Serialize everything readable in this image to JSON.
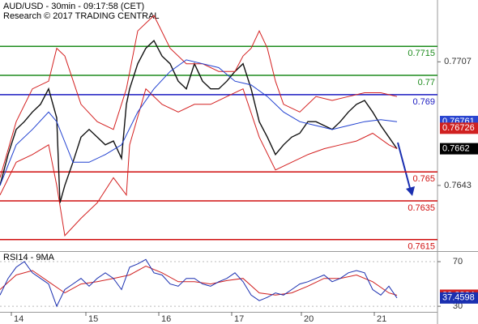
{
  "chart_data": [
    {
      "type": "line",
      "title": "AUD/USD - 30min - 09:17:58 (CET)",
      "subtitle": "Research © 2017 TRADING CENTRAL",
      "xlim": [
        0,
        270
      ],
      "ylim": [
        0.7609,
        0.7739
      ],
      "yticks": [
        0.7707,
        0.7643
      ],
      "levels": {
        "values": [
          0.7715,
          0.77,
          0.769,
          0.765,
          0.7635,
          0.7615
        ],
        "colors": [
          "#1e8c1e",
          "#1e8c1e",
          "#1a1ac0",
          "#d01010",
          "#d01010",
          "#d01010"
        ]
      },
      "markers": [
        {
          "value": 0.76761,
          "color": "#2a45d0"
        },
        {
          "value": 0.76726,
          "color": "#d02020"
        }
      ],
      "series": [
        {
          "color": "#111111",
          "x": [
            0,
            5,
            10,
            15,
            20,
            25,
            30,
            35,
            37,
            40,
            45,
            50,
            55,
            60,
            65,
            70,
            75,
            78,
            80,
            85,
            90,
            95,
            100,
            105,
            110,
            115,
            120,
            125,
            130,
            135,
            140,
            145,
            150,
            155,
            160,
            165,
            170,
            175,
            180,
            185,
            190,
            195,
            200,
            205,
            210,
            215,
            220,
            225,
            230,
            235,
            240,
            245
          ],
          "values": [
            0.7643,
            0.7659,
            0.7672,
            0.7676,
            0.7681,
            0.7685,
            0.7693,
            0.7678,
            0.7634,
            0.7643,
            0.7655,
            0.7668,
            0.7672,
            0.7668,
            0.7664,
            0.7666,
            0.7657,
            0.7685,
            0.7693,
            0.7706,
            0.7714,
            0.7718,
            0.771,
            0.7706,
            0.7697,
            0.7693,
            0.7706,
            0.7697,
            0.7693,
            0.7693,
            0.7697,
            0.7702,
            0.7706,
            0.7693,
            0.7676,
            0.7668,
            0.7659,
            0.7664,
            0.7668,
            0.767,
            0.7676,
            0.7676,
            0.7674,
            0.7672,
            0.7676,
            0.7681,
            0.7685,
            0.7687,
            0.7681,
            0.7674,
            0.7668,
            0.7662
          ]
        },
        {
          "color": "#d42020",
          "x": [
            0,
            10,
            20,
            30,
            35,
            40,
            50,
            60,
            70,
            78,
            85,
            95,
            105,
            115,
            125,
            135,
            145,
            150,
            155,
            160,
            165,
            170,
            175,
            185,
            195,
            205,
            215,
            225,
            235,
            245
          ],
          "values": [
            0.7647,
            0.7676,
            0.7693,
            0.7697,
            0.7714,
            0.771,
            0.7685,
            0.7676,
            0.7672,
            0.7693,
            0.7723,
            0.7731,
            0.7714,
            0.7706,
            0.7706,
            0.7702,
            0.7702,
            0.771,
            0.7714,
            0.7723,
            0.7714,
            0.7697,
            0.7685,
            0.7681,
            0.7689,
            0.7687,
            0.7689,
            0.7691,
            0.7691,
            0.7689
          ]
        },
        {
          "color": "#d42020",
          "x": [
            0,
            10,
            20,
            30,
            35,
            40,
            50,
            60,
            70,
            78,
            80,
            90,
            100,
            110,
            120,
            130,
            140,
            150,
            160,
            170,
            180,
            190,
            200,
            210,
            220,
            230,
            240,
            245
          ],
          "values": [
            0.7638,
            0.7655,
            0.7659,
            0.7664,
            0.7643,
            0.7617,
            0.7626,
            0.7634,
            0.7647,
            0.7638,
            0.7664,
            0.7693,
            0.7685,
            0.7681,
            0.7685,
            0.7685,
            0.7689,
            0.7693,
            0.7668,
            0.7651,
            0.7655,
            0.7659,
            0.7662,
            0.7664,
            0.7666,
            0.767,
            0.7664,
            0.7662
          ]
        },
        {
          "color": "#2040d0",
          "x": [
            0,
            10,
            20,
            30,
            35,
            45,
            55,
            65,
            75,
            85,
            95,
            105,
            115,
            125,
            135,
            145,
            155,
            165,
            175,
            185,
            195,
            205,
            215,
            225,
            235,
            245
          ],
          "values": [
            0.7643,
            0.7664,
            0.7672,
            0.7681,
            0.7676,
            0.7655,
            0.7655,
            0.7659,
            0.7664,
            0.7681,
            0.7693,
            0.7702,
            0.7708,
            0.7706,
            0.7704,
            0.7697,
            0.7695,
            0.7689,
            0.7681,
            0.7676,
            0.7674,
            0.7672,
            0.7674,
            0.7676,
            0.7677,
            0.7676
          ]
        }
      ]
    },
    {
      "type": "line",
      "title": "RSI14 - 9MA",
      "xlim": [
        0,
        270
      ],
      "ylim": [
        25,
        78
      ],
      "yticks": [
        70,
        30
      ],
      "xticks": [
        {
          "value": 7,
          "label": "14"
        },
        {
          "value": 53,
          "label": "15"
        },
        {
          "value": 98,
          "label": "16"
        },
        {
          "value": 143,
          "label": "17"
        },
        {
          "value": 186,
          "label": "20"
        },
        {
          "value": 231,
          "label": "21"
        }
      ],
      "series": [
        {
          "color": "#d02020",
          "x": [
            0,
            10,
            20,
            30,
            40,
            50,
            60,
            70,
            80,
            90,
            100,
            110,
            120,
            130,
            140,
            150,
            160,
            170,
            180,
            190,
            200,
            210,
            220,
            230,
            240,
            245
          ],
          "values": [
            45,
            58,
            62,
            52,
            42,
            50,
            52,
            55,
            58,
            66,
            60,
            52,
            52,
            50,
            53,
            55,
            42,
            40,
            42,
            48,
            55,
            55,
            58,
            52,
            42,
            39.8864
          ]
        },
        {
          "color": "#1a2fb0",
          "x": [
            0,
            5,
            10,
            15,
            20,
            25,
            30,
            35,
            40,
            45,
            50,
            55,
            60,
            65,
            70,
            75,
            80,
            85,
            90,
            95,
            100,
            105,
            110,
            115,
            120,
            125,
            130,
            135,
            140,
            145,
            150,
            155,
            160,
            165,
            170,
            175,
            180,
            185,
            190,
            195,
            200,
            205,
            210,
            215,
            220,
            225,
            230,
            235,
            240,
            245
          ],
          "values": [
            40,
            55,
            65,
            70,
            60,
            55,
            50,
            30,
            45,
            50,
            55,
            48,
            55,
            60,
            55,
            45,
            65,
            68,
            72,
            60,
            58,
            50,
            48,
            55,
            55,
            50,
            48,
            52,
            55,
            60,
            52,
            40,
            35,
            38,
            42,
            40,
            45,
            50,
            52,
            55,
            58,
            52,
            55,
            60,
            62,
            60,
            45,
            40,
            48,
            37.4598
          ]
        }
      ]
    }
  ]
}
